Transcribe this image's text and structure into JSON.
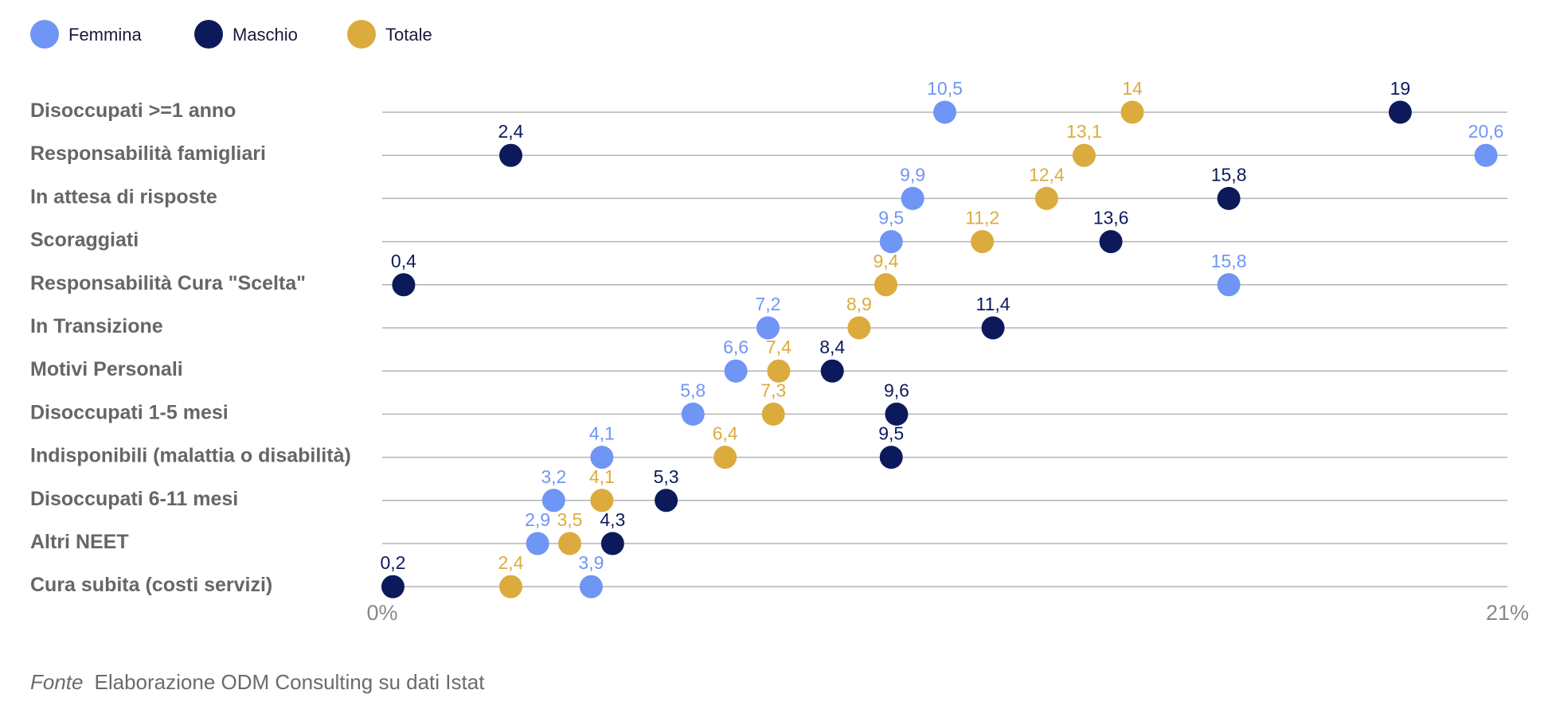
{
  "chart_data": {
    "type": "scatter",
    "categories": [
      "Disoccupati >=1 anno",
      "Responsabilità famigliari",
      "In attesa di risposte",
      "Scoraggiati",
      "Responsabilità Cura \"Scelta\"",
      "In Transizione",
      "Motivi Personali",
      "Disoccupati 1-5 mesi",
      "Indisponibili (malattia o disabilità)",
      "Disoccupati 6-11 mesi",
      "Altri NEET",
      "Cura subita (costi servizi)"
    ],
    "series": [
      {
        "name": "Femmina",
        "color": "#6f95f5",
        "values": [
          10.5,
          20.6,
          9.9,
          9.5,
          15.8,
          7.2,
          6.6,
          5.8,
          4.1,
          3.2,
          2.9,
          3.9
        ],
        "labels": [
          "10,5",
          "20,6",
          "9,9",
          "9,5",
          "15,8",
          "7,2",
          "6,6",
          "5,8",
          "4,1",
          "3,2",
          "2,9",
          "3,9"
        ]
      },
      {
        "name": "Maschio",
        "color": "#0c1a5c",
        "values": [
          19,
          2.4,
          15.8,
          13.6,
          0.4,
          11.4,
          8.4,
          9.6,
          9.5,
          5.3,
          4.3,
          0.2
        ],
        "labels": [
          "19",
          "2,4",
          "15,8",
          "13,6",
          "0,4",
          "11,4",
          "8,4",
          "9,6",
          "9,5",
          "5,3",
          "4,3",
          "0,2"
        ]
      },
      {
        "name": "Totale",
        "color": "#dcab3d",
        "values": [
          14,
          13.1,
          12.4,
          11.2,
          9.4,
          8.9,
          7.4,
          7.3,
          6.4,
          4.1,
          3.5,
          2.4
        ],
        "labels": [
          "14",
          "13,1",
          "12,4",
          "11,2",
          "9,4",
          "8,9",
          "7,4",
          "7,3",
          "6,4",
          "4,1",
          "3,5",
          "2,4"
        ]
      }
    ],
    "xlim": [
      0,
      21
    ],
    "x_tick_labels": [
      "0%",
      "21%"
    ],
    "legend_position": "top-left",
    "grid": "horizontal"
  },
  "source": {
    "label": "Fonte",
    "text": "Elaborazione ODM Consulting su dati Istat"
  }
}
